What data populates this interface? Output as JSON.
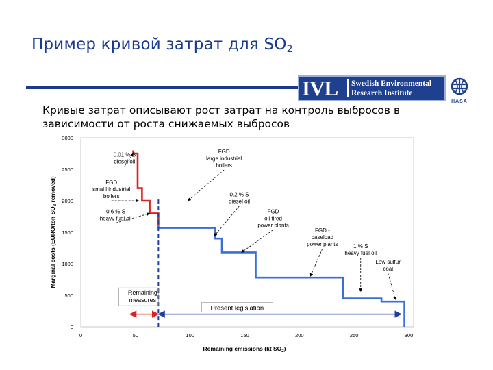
{
  "slide": {
    "title_main": "Пример кривой затрат для SO",
    "title_sub": "2",
    "subtitle_line1": "Кривые затрат описывают рост затрат на контроль выбросов в",
    "subtitle_line2": "зависимости от роста снижаемых выбросов"
  },
  "logo": {
    "word": "IVL",
    "line1": "Swedish Environmental",
    "line2": "Research Institute",
    "globe_caption": "IIASA",
    "color": "#1f3f8f"
  },
  "chart_data": {
    "type": "line",
    "xlabel": "Remaining emissions (kt SO2)",
    "ylabel": "Marginal costs (EURO/ton SO2 removed)",
    "xlim": [
      0,
      300
    ],
    "ylim": [
      0,
      3000
    ],
    "xticks": [
      0,
      50,
      100,
      150,
      200,
      250,
      300
    ],
    "yticks": [
      0,
      500,
      1000,
      1500,
      2000,
      2500,
      3000
    ],
    "series": [
      {
        "color": "#dd2222",
        "points": [
          [
            48,
            2800
          ],
          [
            48,
            2750
          ],
          [
            52,
            2750
          ],
          [
            52,
            2200
          ],
          [
            56,
            2200
          ],
          [
            56,
            2000
          ],
          [
            63,
            2000
          ],
          [
            63,
            1800
          ],
          [
            71,
            1800
          ],
          [
            71,
            1600
          ]
        ]
      },
      {
        "color": "#3a6fd8",
        "points": [
          [
            71,
            1600
          ],
          [
            71,
            1570
          ],
          [
            123,
            1570
          ],
          [
            123,
            1400
          ],
          [
            129,
            1400
          ],
          [
            129,
            1180
          ],
          [
            160,
            1180
          ],
          [
            160,
            780
          ],
          [
            240,
            780
          ],
          [
            240,
            450
          ],
          [
            275,
            450
          ],
          [
            275,
            400
          ],
          [
            296,
            400
          ],
          [
            296,
            0
          ]
        ]
      }
    ],
    "divider_x": 71,
    "annotations": [
      {
        "lines": [
          "0.01 % S",
          "diesel oil"
        ],
        "tx": 40,
        "ty": 2700,
        "ax": 48,
        "ay": 2750
      },
      {
        "lines": [
          "FGD",
          "smal l industrial",
          "boilers"
        ],
        "tx": 28,
        "ty": 2260,
        "ax": 53,
        "ay": 2000
      },
      {
        "lines": [
          "0.6 % S",
          "heavy fuel oil"
        ],
        "tx": 32,
        "ty": 1800,
        "ax": 63,
        "ay": 1800
      },
      {
        "lines": [
          "FGD",
          "large industrial",
          "boilers"
        ],
        "tx": 131,
        "ty": 2750,
        "ax": 98,
        "ay": 2000
      },
      {
        "lines": [
          "0.2 % S",
          "diesel oil"
        ],
        "tx": 145,
        "ty": 2070,
        "ax": 122,
        "ay": 1440
      },
      {
        "lines": [
          "FGD",
          "oil fired",
          "power plants"
        ],
        "tx": 176,
        "ty": 1800,
        "ax": 147,
        "ay": 1180
      },
      {
        "lines": [
          "FGD -",
          "baseload",
          "power plants"
        ],
        "tx": 221,
        "ty": 1500,
        "ax": 210,
        "ay": 800
      },
      {
        "lines": [
          "1 % S",
          "heavy fuel oil"
        ],
        "tx": 256,
        "ty": 1250,
        "ax": 256,
        "ay": 560
      },
      {
        "lines": [
          "Low sulfur",
          "coal"
        ],
        "tx": 281,
        "ty": 1000,
        "ax": 288,
        "ay": 430
      }
    ],
    "remaining_measures": {
      "label_lines": [
        "Remaining",
        "measures"
      ],
      "x0": 45,
      "x1": 71,
      "y": 200
    },
    "present_legislation": {
      "label": "Present legislation",
      "x0": 71,
      "x1": 293,
      "y": 200
    }
  }
}
